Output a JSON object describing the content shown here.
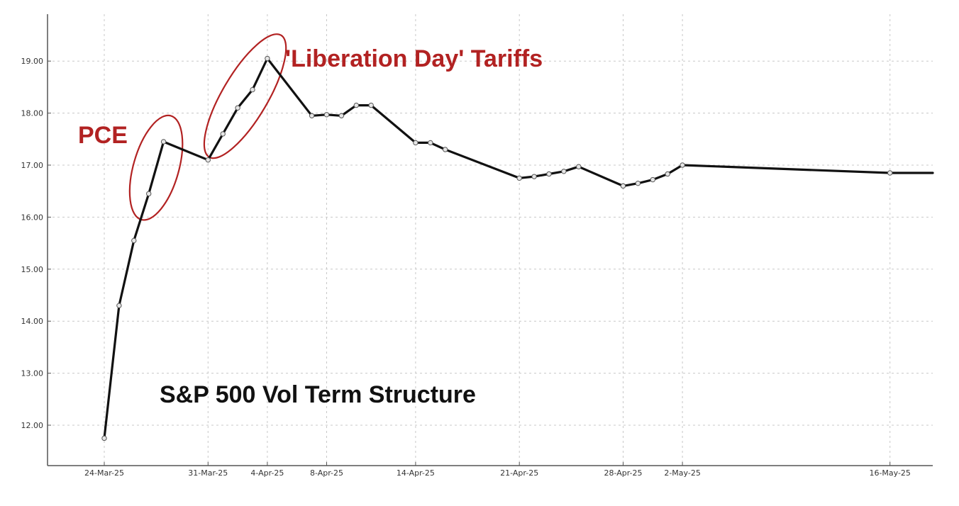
{
  "chart_data": {
    "type": "line",
    "title": "S&P 500 Vol Term Structure",
    "xlabel": "",
    "ylabel": "",
    "ylim": [
      11.5,
      19.75
    ],
    "grid": true,
    "legend": "none",
    "x_ticks": [
      "24-Mar-25",
      "31-Mar-25",
      "4-Apr-25",
      "8-Apr-25",
      "14-Apr-25",
      "21-Apr-25",
      "28-Apr-25",
      "2-May-25",
      "16-May-25"
    ],
    "y_ticks": [
      "12.00",
      "13.00",
      "14.00",
      "15.00",
      "16.00",
      "17.00",
      "18.00",
      "19.00"
    ],
    "series": [
      {
        "x": [
          "2025-03-24",
          "2025-03-25",
          "2025-03-26",
          "2025-03-27",
          "2025-03-28",
          "2025-03-31",
          "2025-04-01",
          "2025-04-02",
          "2025-04-03",
          "2025-04-04",
          "2025-04-07",
          "2025-04-08",
          "2025-04-09",
          "2025-04-10",
          "2025-04-11",
          "2025-04-14",
          "2025-04-15",
          "2025-04-16",
          "2025-04-21",
          "2025-04-22",
          "2025-04-23",
          "2025-04-24",
          "2025-04-25",
          "2025-04-28",
          "2025-04-29",
          "2025-04-30",
          "2025-05-01",
          "2025-05-02",
          "2025-05-16",
          "2025-05-19"
        ],
        "values": [
          11.75,
          14.3,
          15.55,
          16.45,
          17.45,
          17.1,
          17.6,
          18.1,
          18.45,
          19.05,
          17.95,
          17.97,
          17.95,
          18.15,
          18.15,
          17.43,
          17.43,
          17.3,
          16.75,
          16.78,
          16.83,
          16.88,
          16.97,
          16.6,
          16.65,
          16.72,
          16.83,
          17.0,
          16.85,
          16.85
        ],
        "color": "#111111"
      }
    ],
    "annotations": [
      {
        "text": "PCE",
        "color": "#b22222",
        "circle_from": "2025-03-27",
        "circle_to": "2025-03-28"
      },
      {
        "text": "'Liberation Day' Tariffs",
        "color": "#b22222",
        "circle_from": "2025-04-01",
        "circle_to": "2025-04-04"
      }
    ]
  }
}
